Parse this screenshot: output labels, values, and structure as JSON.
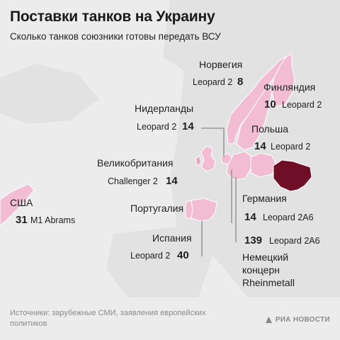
{
  "header": {
    "title": "Поставки танков на Украину",
    "subtitle": "Сколько танков союзники готовы передать ВСУ"
  },
  "colors": {
    "background": "#ececec",
    "land": "#e2e2e2",
    "donor": "#f2bcd3",
    "ukraine": "#6e0f27",
    "leader": "#8a8a8a"
  },
  "entries": [
    {
      "id": "usa",
      "country": "США",
      "count": "31",
      "model": "M1 Abrams"
    },
    {
      "id": "norway",
      "country": "Норвегия",
      "count": "8",
      "model": "Leopard 2"
    },
    {
      "id": "finland",
      "country": "Финляндия",
      "count": "10",
      "model": "Leopard 2"
    },
    {
      "id": "netherlands",
      "country": "Нидерланды",
      "count": "14",
      "model": "Leopard 2"
    },
    {
      "id": "poland",
      "country": "Польша",
      "count": "14",
      "model": "Leopard 2"
    },
    {
      "id": "uk",
      "country": "Великобритания",
      "count": "14",
      "model": "Challenger 2"
    },
    {
      "id": "portugal",
      "country": "Португалия",
      "count": "",
      "model": ""
    },
    {
      "id": "spain",
      "country": "Испания",
      "count": "40",
      "model": "Leopard 2"
    },
    {
      "id": "germany",
      "country": "Германия",
      "count": "14",
      "model": "Leopard 2A6"
    },
    {
      "id": "rheinmetall",
      "country": "Немецкий концерн Rheinmetall",
      "count": "139",
      "model": "Leopard 2A6"
    }
  ],
  "footer": {
    "source": "Источники: зарубежные СМИ, заявления европейских политиков",
    "logo": "РИА НОВОСТИ"
  }
}
